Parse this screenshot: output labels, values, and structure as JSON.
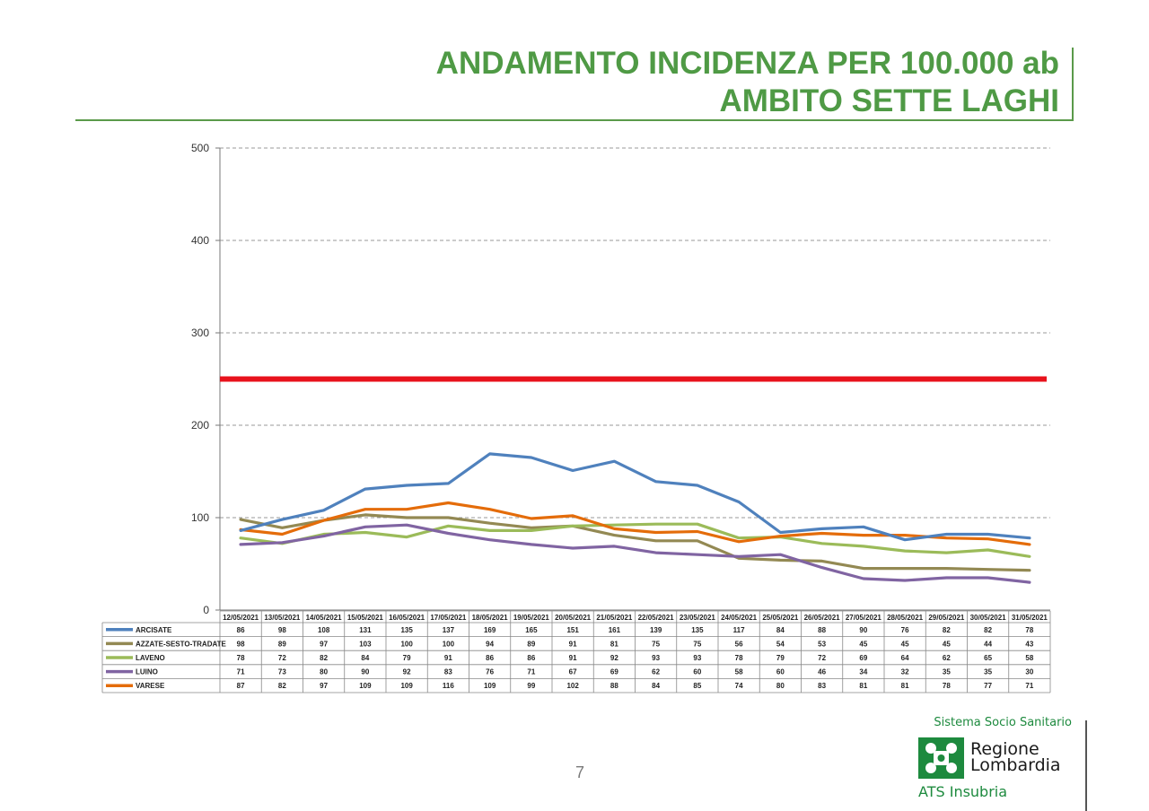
{
  "header": {
    "title_line1": "ANDAMENTO INCIDENZA PER 100.000 ab",
    "title_line2": "AMBITO SETTE LAGHI"
  },
  "page_number": "7",
  "logo": {
    "top_text": "Sistema Socio Sanitario",
    "name_line1": "Regione",
    "name_line2": "Lombardia",
    "bottom_text": "ATS Insubria",
    "icon": "regione-lombardia-rose-icon",
    "color": "#1d8a3e"
  },
  "colors": {
    "title": "#4f9a45",
    "threshold": "#e8121c",
    "grid": "#999999"
  },
  "chart_data": {
    "type": "line",
    "title": "",
    "xlabel": "",
    "ylabel": "",
    "ylim": [
      0,
      500
    ],
    "yticks": [
      0,
      100,
      200,
      300,
      400,
      500
    ],
    "grid": true,
    "legend": "data-table",
    "categories": [
      "12/05/2021",
      "13/05/2021",
      "14/05/2021",
      "15/05/2021",
      "16/05/2021",
      "17/05/2021",
      "18/05/2021",
      "19/05/2021",
      "20/05/2021",
      "21/05/2021",
      "22/05/2021",
      "23/05/2021",
      "24/05/2021",
      "25/05/2021",
      "26/05/2021",
      "27/05/2021",
      "28/05/2021",
      "29/05/2021",
      "30/05/2021",
      "31/05/2021"
    ],
    "series": [
      {
        "name": "ARCISATE",
        "color": "#4f81bd",
        "values": [
          86,
          98,
          108,
          131,
          135,
          137,
          169,
          165,
          151,
          161,
          139,
          135,
          117,
          84,
          88,
          90,
          76,
          82,
          82,
          78
        ]
      },
      {
        "name": "AZZATE-SESTO-TRADATE",
        "color": "#938953",
        "values": [
          98,
          89,
          97,
          103,
          100,
          100,
          94,
          89,
          91,
          81,
          75,
          75,
          56,
          54,
          53,
          45,
          45,
          45,
          44,
          43
        ]
      },
      {
        "name": "LAVENO",
        "color": "#9bbb59",
        "values": [
          78,
          72,
          82,
          84,
          79,
          91,
          86,
          86,
          91,
          92,
          93,
          93,
          78,
          79,
          72,
          69,
          64,
          62,
          65,
          58
        ]
      },
      {
        "name": "LUINO",
        "color": "#8064a2",
        "values": [
          71,
          73,
          80,
          90,
          92,
          83,
          76,
          71,
          67,
          69,
          62,
          60,
          58,
          60,
          46,
          34,
          32,
          35,
          35,
          30
        ]
      },
      {
        "name": "VARESE",
        "color": "#e46c0a",
        "values": [
          87,
          82,
          97,
          109,
          109,
          116,
          109,
          99,
          102,
          88,
          84,
          85,
          74,
          80,
          83,
          81,
          81,
          78,
          77,
          71
        ]
      }
    ],
    "threshold": {
      "value": 250,
      "color": "#e8121c"
    }
  }
}
